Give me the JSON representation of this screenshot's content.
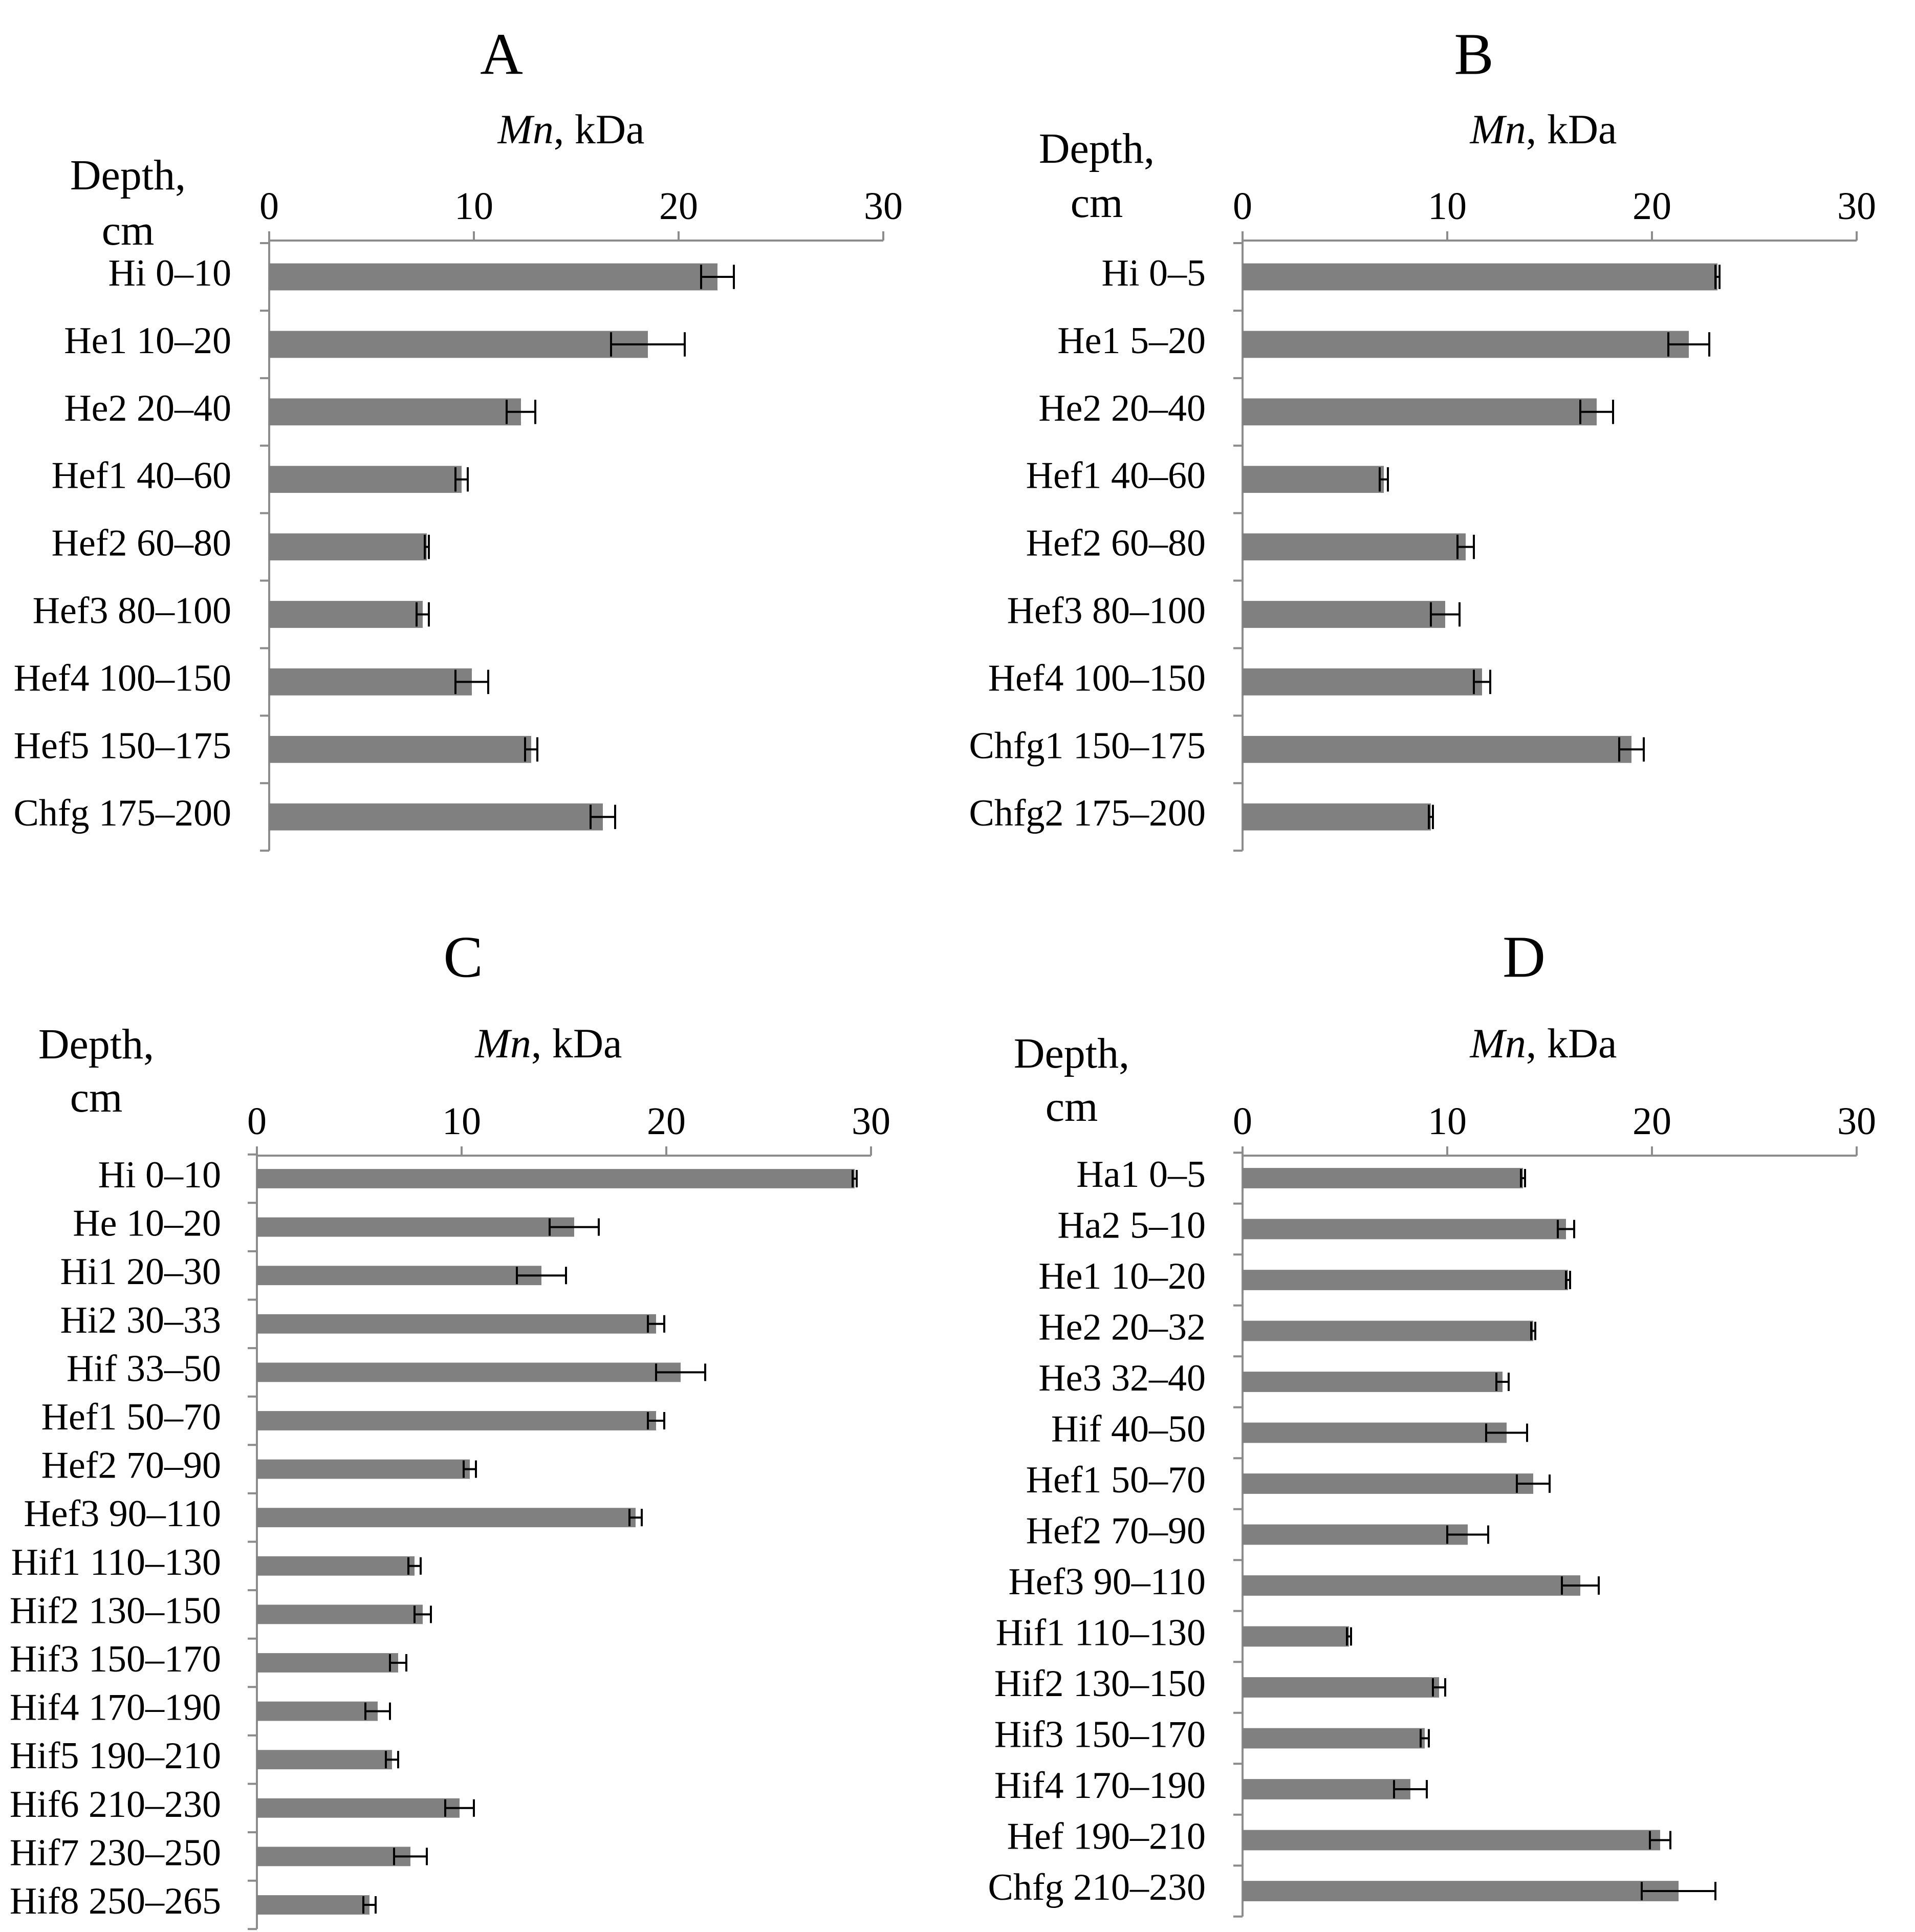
{
  "figure": {
    "units": "kDa"
  },
  "panels": [
    {
      "letter": "A",
      "x_title": {
        "italic": "Mn",
        "rest": ", kDa"
      },
      "depth_title": [
        "Depth,",
        "cm"
      ]
    },
    {
      "letter": "B",
      "x_title": {
        "italic": "Mn",
        "rest": ", kDa"
      },
      "depth_title": [
        "Depth,",
        "cm"
      ]
    },
    {
      "letter": "C",
      "x_title": {
        "italic": "Mn",
        "rest": ", kDa"
      },
      "depth_title": [
        "Depth,",
        "cm"
      ]
    },
    {
      "letter": "D",
      "x_title": {
        "italic": "Mn",
        "rest": ", kDa"
      },
      "depth_title": [
        "Depth,",
        "cm"
      ]
    }
  ],
  "chart_data": [
    {
      "type": "bar",
      "orientation": "horizontal",
      "title": "A",
      "xlabel": "Mn, kDa",
      "ylabel": "Depth, cm",
      "xlim": [
        0,
        30
      ],
      "xticks": [
        0,
        10,
        20,
        30
      ],
      "color": "#808080",
      "categories": [
        "Hi 0–10",
        "He1 10–20",
        "He2 20–40",
        "Hef1 40–60",
        "Hef2 60–80",
        "Hef3 80–100",
        "Hef4 100–150",
        "Hef5 150–175",
        "Chfg 175–200"
      ],
      "values": [
        21.9,
        18.5,
        12.3,
        9.4,
        7.7,
        7.5,
        9.9,
        12.8,
        16.3
      ],
      "errors": [
        0.8,
        1.8,
        0.7,
        0.3,
        0.1,
        0.3,
        0.8,
        0.3,
        0.6
      ]
    },
    {
      "type": "bar",
      "orientation": "horizontal",
      "title": "B",
      "xlabel": "Mn, kDa",
      "ylabel": "Depth, cm",
      "xlim": [
        0,
        30
      ],
      "xticks": [
        0,
        10,
        20,
        30
      ],
      "color": "#808080",
      "categories": [
        "Hi 0–5",
        "He1 5–20",
        "He2 20–40",
        "Hef1 40–60",
        "Hef2 60–80",
        "Hef3 80–100",
        "Hef4 100–150",
        "Chfg1 150–175",
        "Chfg2 175–200"
      ],
      "values": [
        23.2,
        21.8,
        17.3,
        6.9,
        10.9,
        9.9,
        11.7,
        19.0,
        9.2
      ],
      "errors": [
        0.1,
        1.0,
        0.8,
        0.2,
        0.4,
        0.7,
        0.4,
        0.6,
        0.1
      ]
    },
    {
      "type": "bar",
      "orientation": "horizontal",
      "title": "C",
      "xlabel": "Mn, kDa",
      "ylabel": "Depth, cm",
      "xlim": [
        0,
        30
      ],
      "xticks": [
        0,
        10,
        20,
        30
      ],
      "color": "#808080",
      "categories": [
        "Hi 0–10",
        "He 10–20",
        "Hi1 20–30",
        "Hi2 30–33",
        "Hif 33–50",
        "Hef1 50–70",
        "Hef2 70–90",
        "Hef3 90–110",
        "Hif1 110–130",
        "Hif2 130–150",
        "Hif3 150–170",
        "Hif4 170–190",
        "Hif5 190–210",
        "Hif6 210–230",
        "Hif7 230–250",
        "Hif8 250–265"
      ],
      "values": [
        29.2,
        15.5,
        13.9,
        19.5,
        20.7,
        19.5,
        10.4,
        18.5,
        7.7,
        8.1,
        6.9,
        5.9,
        6.6,
        9.9,
        7.5,
        5.5
      ],
      "errors": [
        0.1,
        1.2,
        1.2,
        0.4,
        1.2,
        0.4,
        0.3,
        0.3,
        0.3,
        0.4,
        0.4,
        0.6,
        0.3,
        0.7,
        0.8,
        0.3
      ]
    },
    {
      "type": "bar",
      "orientation": "horizontal",
      "title": "D",
      "xlabel": "Mn, kDa",
      "ylabel": "Depth, cm",
      "xlim": [
        0,
        30
      ],
      "xticks": [
        0,
        10,
        20,
        30
      ],
      "color": "#808080",
      "categories": [
        "Ha1 0–5",
        "Ha2 5–10",
        "He1 10–20",
        "He2 20–32",
        "He3 32–40",
        "Hif 40–50",
        "Hef1 50–70",
        "Hef2 70–90",
        "Hef3 90–110",
        "Hif1 110–130",
        "Hif2 130–150",
        "Hif3 150–170",
        "Hif4 170–190",
        "Hef 190–210",
        "Chfg 210–230"
      ],
      "values": [
        13.7,
        15.8,
        15.9,
        14.2,
        12.7,
        12.9,
        14.2,
        11.0,
        16.5,
        5.2,
        9.6,
        8.9,
        8.2,
        20.4,
        21.3
      ],
      "errors": [
        0.1,
        0.4,
        0.1,
        0.1,
        0.3,
        1.0,
        0.8,
        1.0,
        0.9,
        0.1,
        0.3,
        0.2,
        0.8,
        0.5,
        1.8
      ]
    }
  ]
}
